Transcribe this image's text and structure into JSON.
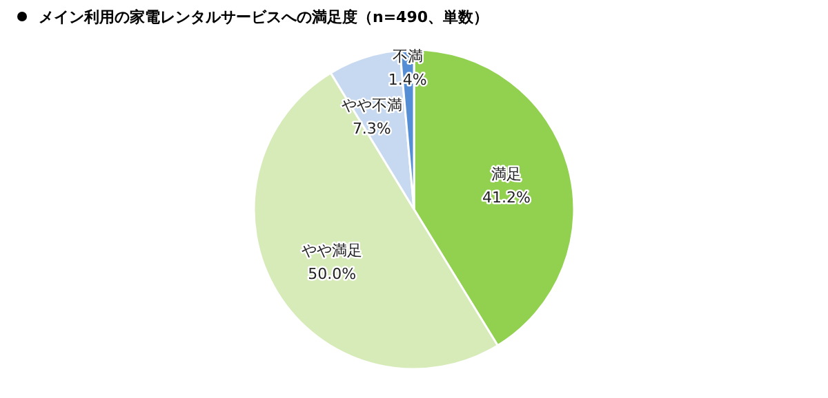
{
  "chart_data": {
    "type": "pie",
    "title": "メイン利用の家電レンタルサービスへの満足度（n=490、単数）",
    "categories": [
      "満足",
      "やや満足",
      "やや不満",
      "不満"
    ],
    "values": [
      41.2,
      50.0,
      7.3,
      1.4
    ],
    "colors": [
      "#92d050",
      "#d6ebb8",
      "#c6d9f1",
      "#558ed5"
    ],
    "value_labels": [
      "41.2%",
      "50.0%",
      "7.3%",
      "1.4%"
    ],
    "legend": false
  }
}
